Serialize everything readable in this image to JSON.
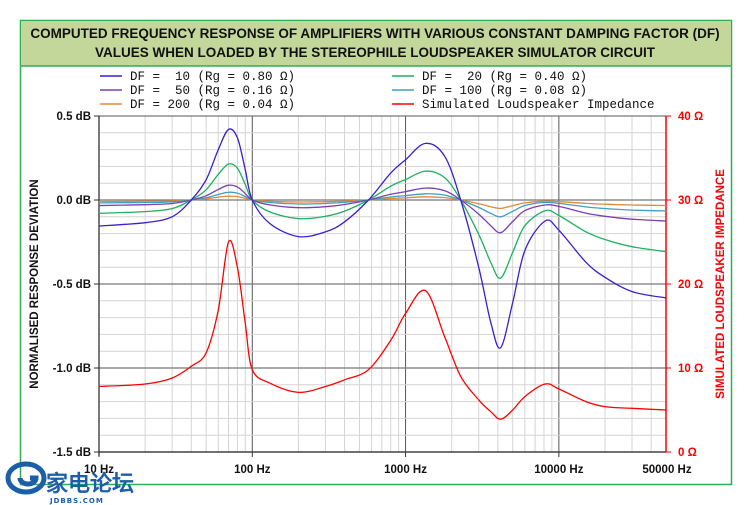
{
  "chart_data": {
    "type": "line",
    "title": "COMPUTED FREQUENCY RESPONSE OF AMPLIFIERS WITH VARIOUS CONSTANT DAMPING FACTOR (DF)",
    "subtitle": "VALUES WHEN LOADED BY THE STEREOPHILE LOUDSPEAKER SIMULATOR CIRCUIT",
    "x_scale": "log",
    "xlim": [
      10,
      50000
    ],
    "x_ticks": [
      "10 Hz",
      "100 Hz",
      "1000 Hz",
      "10000 Hz",
      "50000 Hz"
    ],
    "ylabel": "NORMALISED RESPONSE DEVIATION",
    "ylim": [
      -1.5,
      0.5
    ],
    "y_ticks": [
      "0.5 dB",
      "0.0 dB",
      "-0.5 dB",
      "-1.0 dB",
      "-1.5 dB"
    ],
    "y2label": "SIMULATED LOUDSPEAKER IMPEDANCE",
    "y2lim": [
      0,
      40
    ],
    "y2_ticks": [
      "40 Ω",
      "30 Ω",
      "20 Ω",
      "10 Ω",
      "0 Ω"
    ],
    "grid": true,
    "legend_position": "top",
    "x": [
      10,
      20,
      30,
      40,
      50,
      60,
      70,
      80,
      90,
      100,
      130,
      200,
      300,
      400,
      573,
      800,
      1000,
      1350,
      1800,
      2290,
      3000,
      3600,
      4170,
      5000,
      6000,
      8130,
      10000,
      15000,
      20000,
      30000,
      50000
    ],
    "series": [
      {
        "name": "DF =  10 (Rg = 0.80 Ω)",
        "axis": "left",
        "color": "#3a1fd0",
        "values": [
          -0.155,
          -0.135,
          -0.1,
          0,
          0.12,
          0.3,
          0.42,
          0.37,
          0.18,
          0,
          -0.14,
          -0.218,
          -0.19,
          -0.13,
          0,
          0.16,
          0.24,
          0.337,
          0.26,
          0,
          -0.4,
          -0.73,
          -0.879,
          -0.61,
          -0.3,
          -0.125,
          -0.18,
          -0.37,
          -0.46,
          -0.545,
          -0.583
        ]
      },
      {
        "name": "DF =  20 (Rg = 0.40 Ω)",
        "axis": "left",
        "color": "#1fb060",
        "values": [
          -0.079,
          -0.069,
          -0.051,
          0,
          0.061,
          0.153,
          0.214,
          0.189,
          0.092,
          0,
          -0.071,
          -0.111,
          -0.097,
          -0.066,
          0,
          0.082,
          0.122,
          0.172,
          0.133,
          0,
          -0.204,
          -0.372,
          -0.465,
          -0.311,
          -0.153,
          -0.064,
          -0.092,
          -0.189,
          -0.235,
          -0.278,
          -0.308
        ]
      },
      {
        "name": "DF =  50 (Rg = 0.16 Ω)",
        "axis": "left",
        "color": "#7b3fb5",
        "values": [
          -0.033,
          -0.028,
          -0.021,
          0,
          0.025,
          0.063,
          0.088,
          0.078,
          0.038,
          0,
          -0.029,
          -0.046,
          -0.04,
          -0.027,
          0,
          0.034,
          0.05,
          0.071,
          0.055,
          0,
          -0.084,
          -0.153,
          -0.195,
          -0.128,
          -0.063,
          -0.03,
          -0.038,
          -0.078,
          -0.097,
          -0.114,
          -0.125
        ]
      },
      {
        "name": "DF = 100 (Rg = 0.08 Ω)",
        "axis": "left",
        "color": "#3fa0c0",
        "values": [
          -0.017,
          -0.015,
          -0.011,
          0,
          0.013,
          0.033,
          0.046,
          0.041,
          0.02,
          0,
          -0.015,
          -0.024,
          -0.021,
          -0.014,
          0,
          0.018,
          0.026,
          0.037,
          0.029,
          0,
          -0.044,
          -0.08,
          -0.1,
          -0.067,
          -0.033,
          -0.014,
          -0.02,
          -0.041,
          -0.051,
          -0.06,
          -0.065
        ]
      },
      {
        "name": "DF = 200 (Rg = 0.04 Ω)",
        "axis": "left",
        "color": "#e08a3a",
        "values": [
          -0.009,
          -0.007,
          -0.006,
          0,
          0.007,
          0.017,
          0.023,
          0.02,
          0.01,
          0,
          -0.008,
          -0.012,
          -0.01,
          -0.007,
          0,
          0.009,
          0.013,
          0.019,
          0.014,
          0,
          -0.022,
          -0.04,
          -0.05,
          -0.034,
          -0.017,
          -0.007,
          -0.01,
          -0.02,
          -0.025,
          -0.03,
          -0.033
        ]
      },
      {
        "name": "Simulated Loudspeaker Impedance",
        "axis": "right",
        "color": "#ff0000",
        "values": [
          7.8,
          8.1,
          8.8,
          10.2,
          11.8,
          16.9,
          25.0,
          22,
          15.3,
          9.8,
          8.2,
          7.1,
          7.8,
          8.6,
          9.8,
          13.3,
          16.5,
          19.2,
          13.7,
          9,
          6.2,
          4.8,
          3.9,
          5.0,
          6.6,
          8.1,
          7.5,
          6.0,
          5.4,
          5.2,
          5.0
        ]
      }
    ]
  },
  "colors": {
    "title_band": "#c4d79b",
    "frame": "#2db050",
    "right_axis": "#ff0000"
  },
  "watermark": {
    "logo_text": "家电论坛",
    "logo_sub": "JDBBS.COM"
  }
}
